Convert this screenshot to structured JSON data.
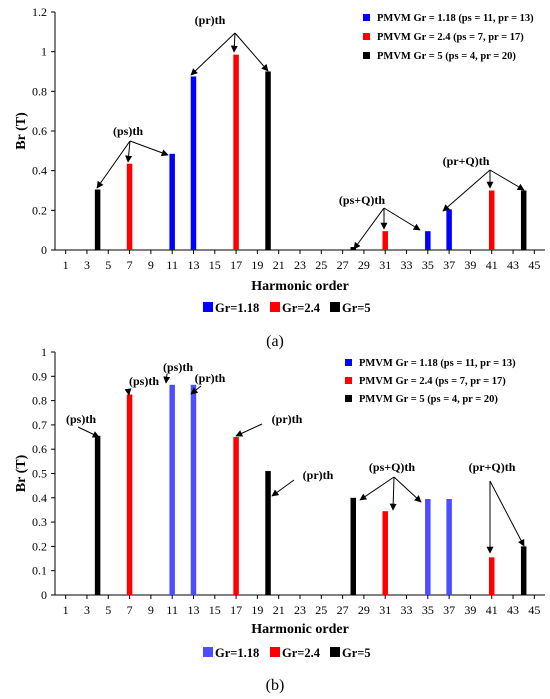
{
  "colors": {
    "Gr=1.18": "#0000ff",
    "Gr=2.4": "#ff0000",
    "Gr=5": "#000000",
    "Gr=1.18_b": "#4d4dff"
  },
  "chart_data": [
    {
      "type": "bar",
      "caption": "(a)",
      "xlabel": "Harmonic order",
      "ylabel": "Br (T)",
      "ylim": [
        0,
        1.2
      ],
      "yticks": [
        "0",
        "0.2",
        "0.4",
        "0.6",
        "0.8",
        "1",
        "1.2"
      ],
      "xticks": [
        "1",
        "3",
        "5",
        "7",
        "9",
        "11",
        "13",
        "15",
        "17",
        "19",
        "21",
        "23",
        "25",
        "27",
        "29",
        "31",
        "33",
        "35",
        "37",
        "39",
        "41",
        "43",
        "45"
      ],
      "grid": false,
      "legend_top": [
        {
          "label": "PMVM Gr = 1.18 (ps = 11, pr = 13)",
          "series": "Gr=1.18"
        },
        {
          "label": "PMVM Gr = 2.4 (ps = 7, pr = 17)",
          "series": "Gr=2.4"
        },
        {
          "label": "PMVM Gr = 5 (ps = 4, pr = 20)",
          "series": "Gr=5"
        }
      ],
      "legend_bottom": [
        "Gr=1.18",
        "Gr=2.4",
        "Gr=5"
      ],
      "series": [
        {
          "name": "Gr=1.18",
          "points": [
            [
              11,
              0.485
            ],
            [
              13,
              0.875
            ],
            [
              35,
              0.095
            ],
            [
              37,
              0.205
            ]
          ]
        },
        {
          "name": "Gr=2.4",
          "points": [
            [
              7,
              0.435
            ],
            [
              17,
              0.985
            ],
            [
              31,
              0.095
            ],
            [
              41,
              0.3
            ]
          ]
        },
        {
          "name": "Gr=5",
          "points": [
            [
              4,
              0.305
            ],
            [
              20,
              0.9
            ],
            [
              28,
              0.015
            ],
            [
              44,
              0.3
            ]
          ]
        }
      ],
      "annotations": [
        {
          "text": "(ps)th"
        },
        {
          "text": "(pr)th"
        },
        {
          "text": "(ps+Q)th"
        },
        {
          "text": "(pr+Q)th"
        }
      ]
    },
    {
      "type": "bar",
      "caption": "(b)",
      "xlabel": "Harmonic order",
      "ylabel": "Br (T)",
      "ylim": [
        0,
        1
      ],
      "yticks": [
        "0",
        "0.1",
        "0.2",
        "0.3",
        "0.4",
        "0.5",
        "0.6",
        "0.7",
        "0.8",
        "0.9",
        "1"
      ],
      "xticks": [
        "1",
        "3",
        "5",
        "7",
        "9",
        "11",
        "13",
        "15",
        "17",
        "19",
        "21",
        "23",
        "25",
        "27",
        "29",
        "31",
        "33",
        "35",
        "37",
        "39",
        "41",
        "43",
        "45"
      ],
      "grid": false,
      "legend_top": [
        {
          "label": "PMVM Gr = 1.18 (ps = 11, pr = 13)",
          "series": "Gr=1.18"
        },
        {
          "label": "PMVM Gr = 2.4 (ps = 7, pr = 17)",
          "series": "Gr=2.4"
        },
        {
          "label": "PMVM Gr = 5 (ps = 4, pr = 20)",
          "series": "Gr=5"
        }
      ],
      "legend_bottom": [
        "Gr=1.18",
        "Gr=2.4",
        "Gr=5"
      ],
      "series": [
        {
          "name": "Gr=1.18",
          "points": [
            [
              11,
              0.865
            ],
            [
              13,
              0.865
            ],
            [
              35,
              0.395
            ],
            [
              37,
              0.395
            ]
          ]
        },
        {
          "name": "Gr=2.4",
          "points": [
            [
              7,
              0.825
            ],
            [
              17,
              0.65
            ],
            [
              31,
              0.345
            ],
            [
              41,
              0.155
            ]
          ]
        },
        {
          "name": "Gr=5",
          "points": [
            [
              4,
              0.655
            ],
            [
              20,
              0.51
            ],
            [
              28,
              0.4
            ],
            [
              44,
              0.2
            ]
          ]
        }
      ],
      "annotations": [
        {
          "text": "(ps)th"
        },
        {
          "text": "(ps)th"
        },
        {
          "text": "(ps)th"
        },
        {
          "text": "(pr)th"
        },
        {
          "text": "(pr)th"
        },
        {
          "text": "(pr)th"
        },
        {
          "text": "(ps+Q)th"
        },
        {
          "text": "(pr+Q)th"
        }
      ]
    }
  ]
}
